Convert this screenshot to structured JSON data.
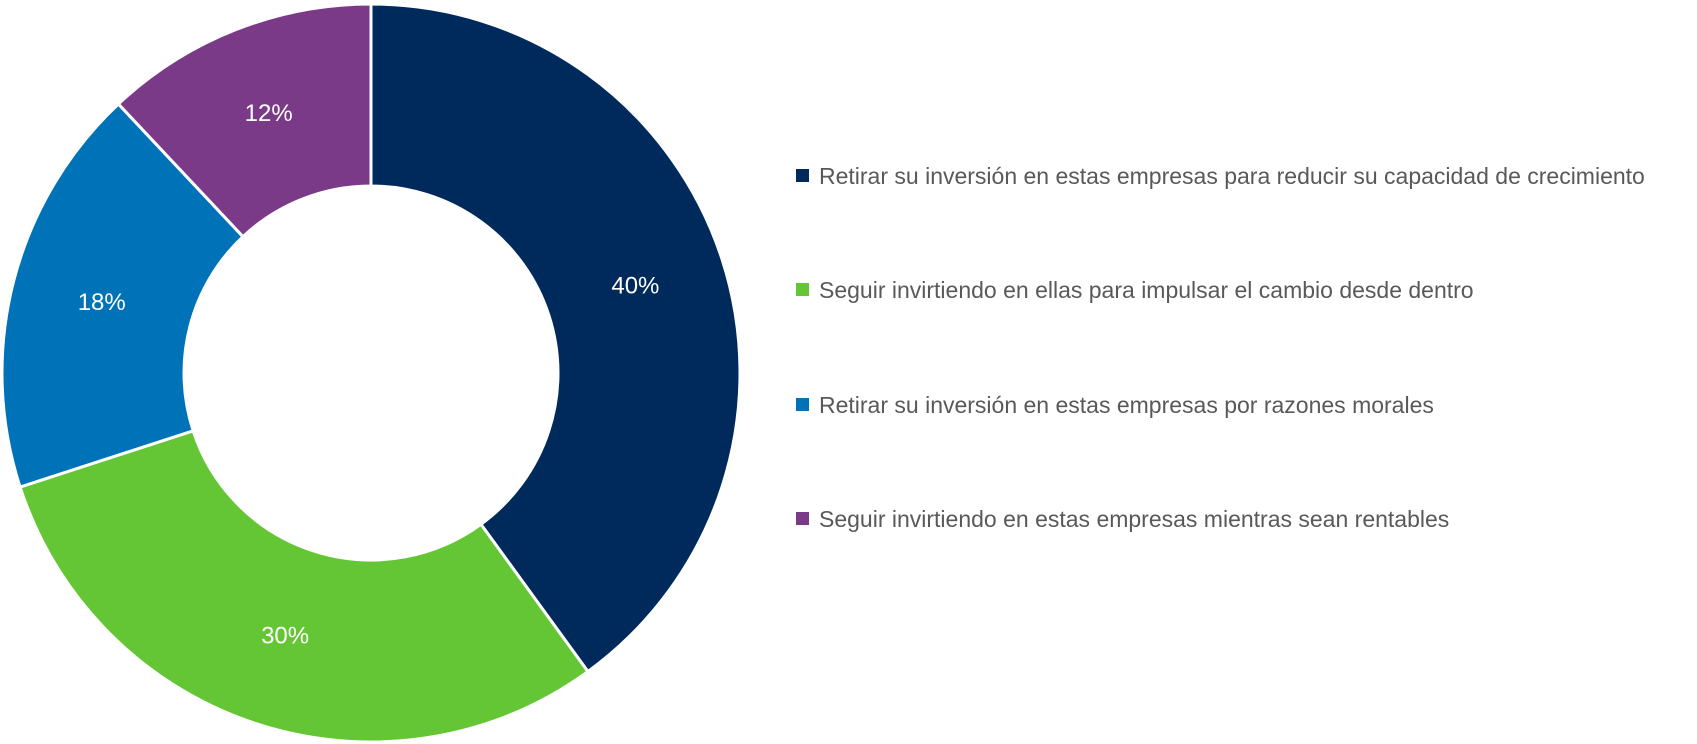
{
  "chart_data": {
    "type": "pie",
    "donut": true,
    "categories": [
      "Retirar su inversión en estas empresas para reducir su capacidad de crecimiento",
      "Seguir invirtiendo en ellas para impulsar el cambio desde dentro",
      "Retirar su inversión en estas empresas por razones morales",
      "Seguir invirtiendo en estas empresas mientras sean rentables"
    ],
    "values": [
      40,
      30,
      18,
      12
    ],
    "value_labels": [
      "40%",
      "30%",
      "18%",
      "12%"
    ],
    "colors": [
      "#002a5c",
      "#65c635",
      "#0072b8",
      "#7b3a88"
    ],
    "legend": "right"
  }
}
